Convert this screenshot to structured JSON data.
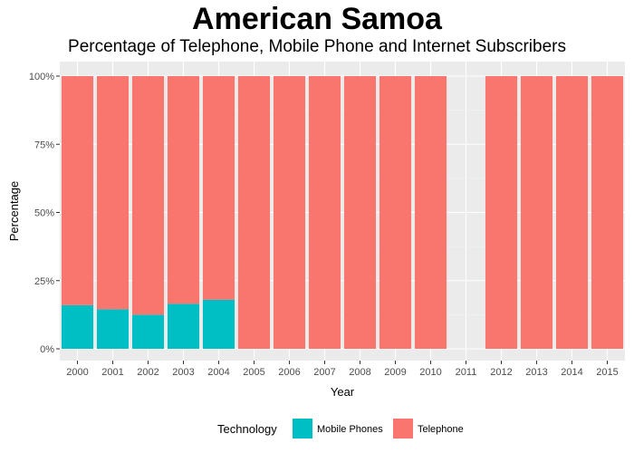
{
  "title": "American Samoa",
  "subtitle": "Percentage of Telephone, Mobile Phone and Internet Subscribers",
  "colors": {
    "panel": "#ebebeb",
    "grid_major": "#ffffff",
    "grid_minor": "#f5f5f5",
    "mobile": "#00bfc4",
    "telephone": "#f8766d"
  },
  "chart_data": {
    "type": "bar",
    "stacked": true,
    "categories": [
      "2000",
      "2001",
      "2002",
      "2003",
      "2004",
      "2005",
      "2006",
      "2007",
      "2008",
      "2009",
      "2010",
      "2011",
      "2012",
      "2013",
      "2014",
      "2015"
    ],
    "series": [
      {
        "name": "Mobile Phones",
        "values": [
          16,
          14.5,
          12.5,
          16.5,
          18,
          0,
          0,
          0,
          0,
          0,
          0,
          null,
          0,
          0,
          0,
          0
        ]
      },
      {
        "name": "Telephone",
        "values": [
          84,
          85.5,
          87.5,
          83.5,
          82,
          100,
          100,
          100,
          100,
          100,
          100,
          null,
          100,
          100,
          100,
          100
        ]
      }
    ],
    "xlabel": "Year",
    "ylabel": "Percentage",
    "ylim": [
      0,
      100
    ],
    "yticks": [
      "0%",
      "25%",
      "50%",
      "75%",
      "100%"
    ],
    "legend": {
      "title": "Technology",
      "position": "bottom"
    },
    "grid": true
  }
}
